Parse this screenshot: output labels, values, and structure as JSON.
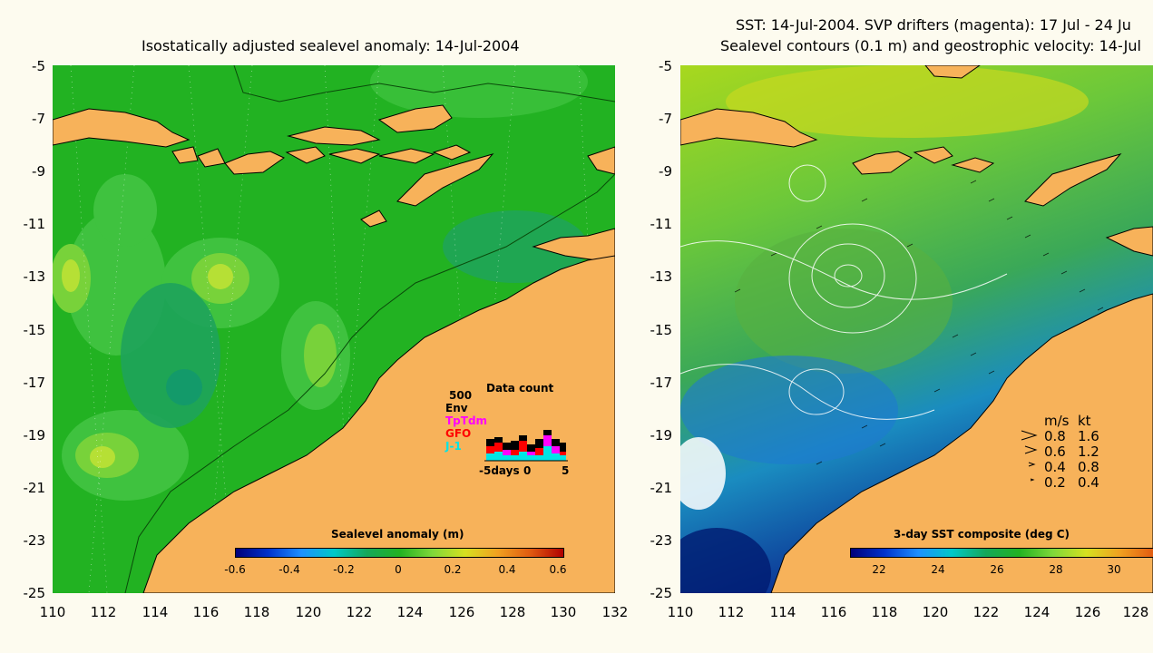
{
  "left_panel": {
    "title": "Isostatically adjusted sealevel anomaly: 14-Jul-2004",
    "y_ticks": [
      "-5",
      "-7",
      "-9",
      "-11",
      "-13",
      "-15",
      "-17",
      "-19",
      "-21",
      "-23",
      "-25"
    ],
    "x_ticks": [
      "110",
      "112",
      "114",
      "116",
      "118",
      "120",
      "122",
      "124",
      "126",
      "128",
      "130",
      "132"
    ],
    "colorbar": {
      "label": "Sealevel anomaly (m)",
      "ticks": [
        "-0.6",
        "-0.4",
        "-0.2",
        "0",
        "0.2",
        "0.4",
        "0.6"
      ]
    },
    "data_count": {
      "title": "Data count",
      "max_label": "500",
      "missions": [
        {
          "name": "Env",
          "color": "#000000"
        },
        {
          "name": "TpTdm",
          "color": "#ff00ff"
        },
        {
          "name": "GFO",
          "color": "#ff0000"
        },
        {
          "name": "J-1",
          "color": "#00e5e5"
        }
      ],
      "x_label_left": "-5days",
      "x_label_mid": "0",
      "x_label_right": "5"
    }
  },
  "right_panel": {
    "title_line1": "SST: 14-Jul-2004. SVP drifters (magenta): 17 Jul - 24 Ju",
    "title_line2": "Sealevel contours (0.1 m) and geostrophic velocity: 14-Jul",
    "y_ticks": [
      "-5",
      "-7",
      "-9",
      "-11",
      "-13",
      "-15",
      "-17",
      "-19",
      "-21",
      "-23",
      "-25"
    ],
    "x_ticks": [
      "110",
      "112",
      "114",
      "116",
      "118",
      "120",
      "122",
      "124",
      "126",
      "128"
    ],
    "speed_legend": {
      "header_ms": "m/s",
      "header_kt": "kt",
      "rows": [
        {
          "ms": "0.8",
          "kt": "1.6"
        },
        {
          "ms": "0.6",
          "kt": "1.2"
        },
        {
          "ms": "0.4",
          "kt": "0.8"
        },
        {
          "ms": "0.2",
          "kt": "0.4"
        }
      ]
    },
    "colorbar": {
      "label": "3-day SST composite (deg C)",
      "ticks": [
        "22",
        "24",
        "26",
        "28",
        "30"
      ]
    }
  },
  "colors": {
    "land": "#f7b25a",
    "ocean_base": "#22b222",
    "background": "#fdfbef"
  }
}
